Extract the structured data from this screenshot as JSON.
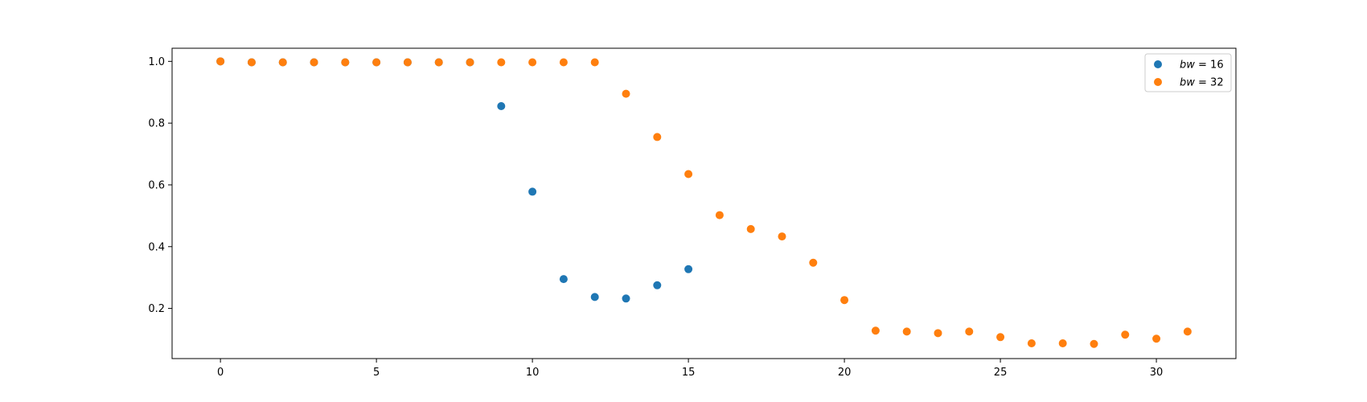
{
  "chart_data": {
    "type": "scatter",
    "title": "",
    "xlabel": "",
    "ylabel": "",
    "xlim": [
      -1.55,
      32.55
    ],
    "ylim": [
      0.0375,
      1.0425
    ],
    "xticks": [
      0,
      5,
      10,
      15,
      20,
      25,
      30
    ],
    "xtick_labels": [
      "0",
      "5",
      "10",
      "15",
      "20",
      "25",
      "30"
    ],
    "yticks": [
      0.2,
      0.4,
      0.6,
      0.8,
      1.0
    ],
    "ytick_labels": [
      "0.2",
      "0.4",
      "0.6",
      "0.8",
      "1.0"
    ],
    "grid": false,
    "legend": "top-right",
    "series": [
      {
        "name_italic": "bw",
        "name_rest": " = 16",
        "color": "#1f77b4",
        "x": [
          0,
          1,
          2,
          3,
          4,
          5,
          6,
          7,
          8,
          9,
          10,
          11,
          12,
          13,
          14,
          15
        ],
        "y": [
          1.0,
          0.997,
          0.997,
          0.997,
          0.997,
          0.997,
          0.997,
          0.997,
          0.997,
          0.855,
          0.578,
          0.295,
          0.237,
          0.232,
          0.275,
          0.327
        ]
      },
      {
        "name_italic": "bw",
        "name_rest": " = 32",
        "color": "#ff7f0e",
        "x": [
          0,
          1,
          2,
          3,
          4,
          5,
          6,
          7,
          8,
          9,
          10,
          11,
          12,
          13,
          14,
          15,
          16,
          17,
          18,
          19,
          20,
          21,
          22,
          23,
          24,
          25,
          26,
          27,
          28,
          29,
          30,
          31
        ],
        "y": [
          1.0,
          0.997,
          0.997,
          0.997,
          0.997,
          0.997,
          0.997,
          0.997,
          0.997,
          0.997,
          0.997,
          0.997,
          0.997,
          0.895,
          0.755,
          0.635,
          0.502,
          0.457,
          0.433,
          0.348,
          0.227,
          0.128,
          0.125,
          0.12,
          0.125,
          0.107,
          0.087,
          0.087,
          0.085,
          0.115,
          0.102,
          0.125
        ]
      }
    ]
  }
}
